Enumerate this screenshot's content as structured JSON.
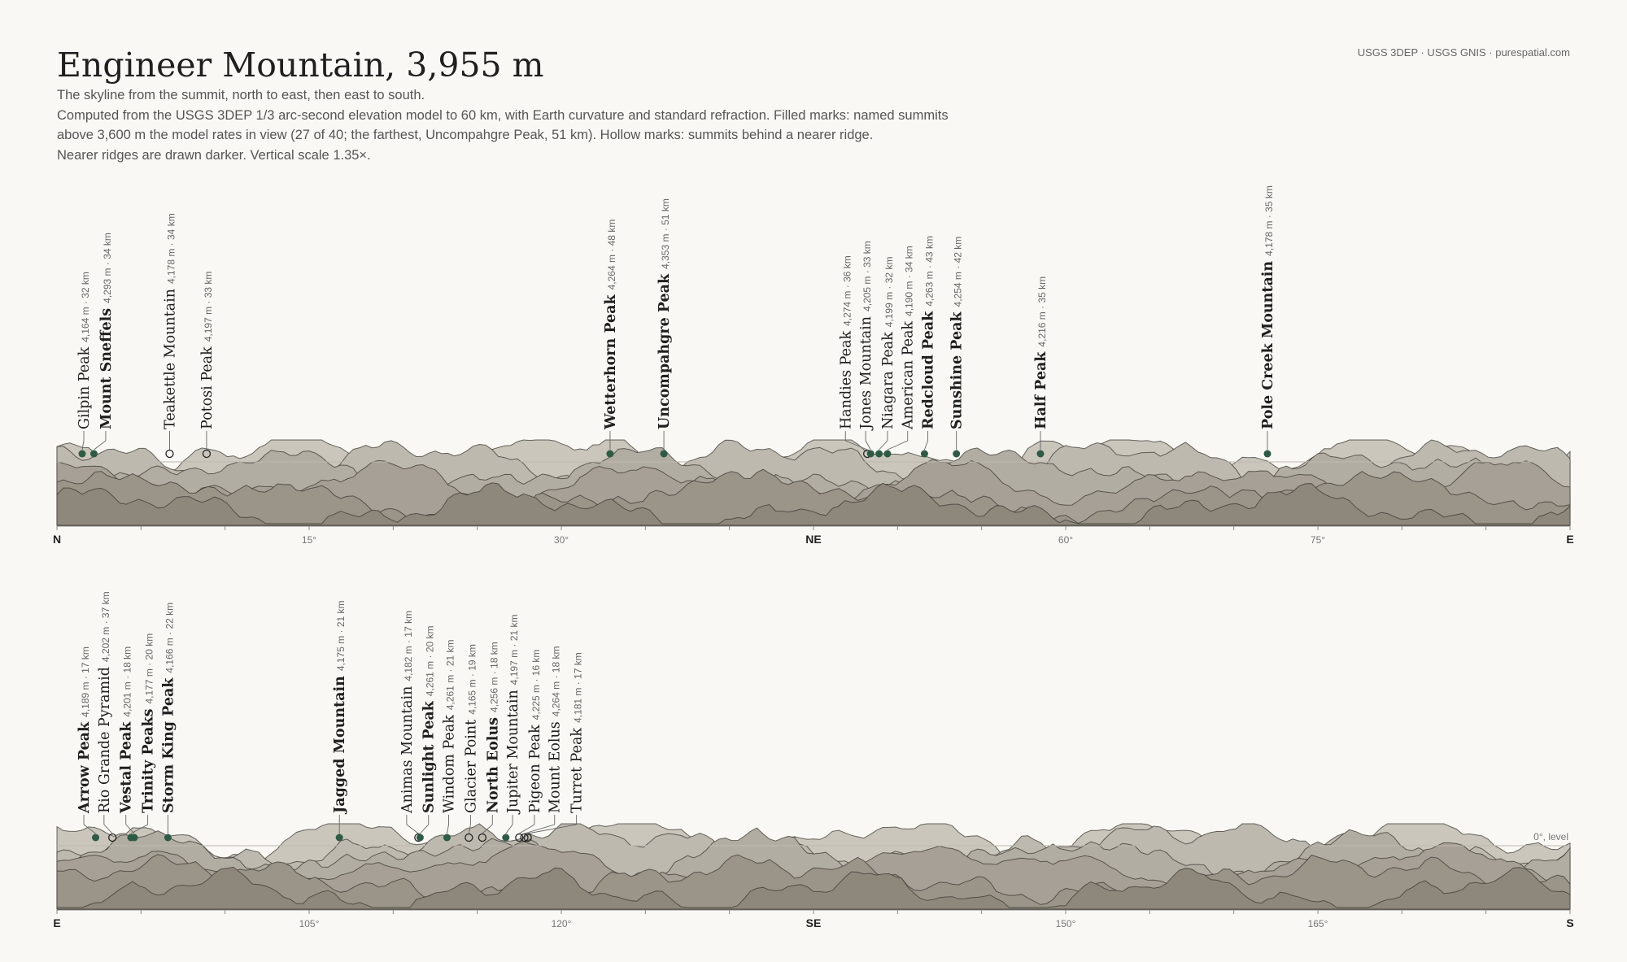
{
  "header": {
    "title": "Engineer Mountain, 3,955 m",
    "credit": "USGS 3DEP · USGS GNIS · purespatial.com",
    "subtitle_lines": [
      "The skyline from the summit, north to east, then east to south.",
      "Computed from the USGS 3DEP 1/3 arc-second elevation model to 60 km, with Earth curvature and standard refraction. Filled marks: named summits",
      "above 3,600 m the model rates in view (27 of 40; the farthest, Uncompahgre Peak, 51 km). Hollow marks: summits behind a nearer ridge.",
      "Nearer ridges are drawn darker. Vertical scale 1.35×."
    ]
  },
  "colors": {
    "background": "#f9f8f4",
    "marker": "#2f5a45",
    "ridge_far": "#cac6bc",
    "ridge_near": "#8e877c"
  },
  "panels": [
    {
      "az_start": 0,
      "az_end": 90,
      "level_label": "",
      "ticks": [
        {
          "az": 0,
          "label": "N",
          "cardinal": true
        },
        {
          "az": 15,
          "label": "15°",
          "cardinal": false
        },
        {
          "az": 30,
          "label": "30°",
          "cardinal": false
        },
        {
          "az": 45,
          "label": "NE",
          "cardinal": true
        },
        {
          "az": 60,
          "label": "60°",
          "cardinal": false
        },
        {
          "az": 75,
          "label": "75°",
          "cardinal": false
        },
        {
          "az": 90,
          "label": "E",
          "cardinal": true
        }
      ],
      "peaks": [
        {
          "name": "Gilpin Peak",
          "meta": "4,164 m · 32 km",
          "az": 1.5,
          "label_az": 1.6,
          "visible": true,
          "bold": false
        },
        {
          "name": "Mount Sneffels",
          "meta": "4,293 m · 34 km",
          "az": 2.2,
          "label_az": 2.9,
          "visible": true,
          "bold": true
        },
        {
          "name": "Teakettle Mountain",
          "meta": "4,178 m · 34 km",
          "az": 6.7,
          "label_az": 6.7,
          "visible": false,
          "bold": false
        },
        {
          "name": "Potosi Peak",
          "meta": "4,197 m · 33 km",
          "az": 8.9,
          "label_az": 8.9,
          "visible": false,
          "bold": false
        },
        {
          "name": "Wetterhorn Peak",
          "meta": "4,264 m · 48 km",
          "az": 32.9,
          "label_az": 32.9,
          "visible": true,
          "bold": true
        },
        {
          "name": "Uncompahgre Peak",
          "meta": "4,353 m · 51 km",
          "az": 36.1,
          "label_az": 36.1,
          "visible": true,
          "bold": true
        },
        {
          "name": "Handies Peak",
          "meta": "4,274 m · 36 km",
          "az": 48.2,
          "label_az": 46.9,
          "visible": false,
          "bold": false
        },
        {
          "name": "Jones Mountain",
          "meta": "4,205 m · 33 km",
          "az": 48.4,
          "label_az": 48.1,
          "visible": true,
          "bold": false
        },
        {
          "name": "Niagara Peak",
          "meta": "4,199 m · 32 km",
          "az": 48.9,
          "label_az": 49.4,
          "visible": true,
          "bold": false
        },
        {
          "name": "American Peak",
          "meta": "4,190 m · 34 km",
          "az": 49.4,
          "label_az": 50.6,
          "visible": true,
          "bold": false
        },
        {
          "name": "Redcloud Peak",
          "meta": "4,263 m · 43 km",
          "az": 51.6,
          "label_az": 51.8,
          "visible": true,
          "bold": true
        },
        {
          "name": "Sunshine Peak",
          "meta": "4,254 m · 42 km",
          "az": 53.5,
          "label_az": 53.5,
          "visible": true,
          "bold": true
        },
        {
          "name": "Half Peak",
          "meta": "4,216 m · 35 km",
          "az": 58.5,
          "label_az": 58.5,
          "visible": true,
          "bold": true
        },
        {
          "name": "Pole Creek Mountain",
          "meta": "4,178 m · 35 km",
          "az": 72.0,
          "label_az": 72.0,
          "visible": true,
          "bold": true
        }
      ]
    },
    {
      "az_start": 90,
      "az_end": 180,
      "level_label": "0°, level",
      "ticks": [
        {
          "az": 90,
          "label": "E",
          "cardinal": true
        },
        {
          "az": 105,
          "label": "105°",
          "cardinal": false
        },
        {
          "az": 120,
          "label": "120°",
          "cardinal": false
        },
        {
          "az": 135,
          "label": "SE",
          "cardinal": true
        },
        {
          "az": 150,
          "label": "150°",
          "cardinal": false
        },
        {
          "az": 165,
          "label": "165°",
          "cardinal": false
        },
        {
          "az": 180,
          "label": "S",
          "cardinal": true
        }
      ],
      "peaks": [
        {
          "name": "Arrow Peak",
          "meta": "4,189 m · 17 km",
          "az": 92.3,
          "label_az": 91.6,
          "visible": true,
          "bold": true
        },
        {
          "name": "Rio Grande Pyramid",
          "meta": "4,202 m · 37 km",
          "az": 93.3,
          "label_az": 92.8,
          "visible": false,
          "bold": false
        },
        {
          "name": "Vestal Peak",
          "meta": "4,201 m · 18 km",
          "az": 94.6,
          "label_az": 94.1,
          "visible": true,
          "bold": true
        },
        {
          "name": "Trinity Peaks",
          "meta": "4,177 m · 20 km",
          "az": 94.4,
          "label_az": 95.4,
          "visible": true,
          "bold": true
        },
        {
          "name": "Storm King Peak",
          "meta": "4,166 m · 22 km",
          "az": 96.6,
          "label_az": 96.6,
          "visible": true,
          "bold": true
        },
        {
          "name": "Jagged Mountain",
          "meta": "4,175 m · 21 km",
          "az": 106.8,
          "label_az": 106.8,
          "visible": true,
          "bold": true
        },
        {
          "name": "Animas Mountain",
          "meta": "4,182 m · 17 km",
          "az": 111.5,
          "label_az": 110.8,
          "visible": false,
          "bold": false
        },
        {
          "name": "Sunlight Peak",
          "meta": "4,261 m · 20 km",
          "az": 111.6,
          "label_az": 112.1,
          "visible": true,
          "bold": true
        },
        {
          "name": "Windom Peak",
          "meta": "4,261 m · 21 km",
          "az": 113.2,
          "label_az": 113.3,
          "visible": true,
          "bold": false
        },
        {
          "name": "Glacier Point",
          "meta": "4,165 m · 19 km",
          "az": 114.5,
          "label_az": 114.6,
          "visible": false,
          "bold": false
        },
        {
          "name": "North Eolus",
          "meta": "4,256 m · 18 km",
          "az": 115.3,
          "label_az": 115.9,
          "visible": false,
          "bold": true
        },
        {
          "name": "Jupiter Mountain",
          "meta": "4,197 m · 21 km",
          "az": 116.7,
          "label_az": 117.1,
          "visible": true,
          "bold": false
        },
        {
          "name": "Pigeon Peak",
          "meta": "4,225 m · 16 km",
          "az": 117.5,
          "label_az": 118.4,
          "visible": false,
          "bold": false
        },
        {
          "name": "Mount Eolus",
          "meta": "4,264 m · 18 km",
          "az": 117.8,
          "label_az": 119.6,
          "visible": false,
          "bold": false
        },
        {
          "name": "Turret Peak",
          "meta": "4,181 m · 17 km",
          "az": 118.0,
          "label_az": 120.9,
          "visible": false,
          "bold": false
        }
      ]
    }
  ]
}
